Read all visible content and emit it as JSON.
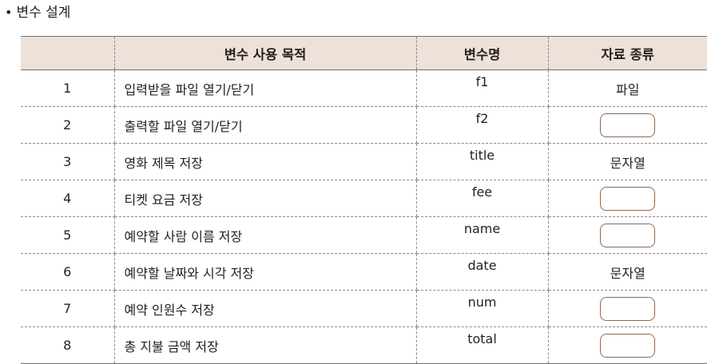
{
  "section": {
    "bullet": "•",
    "title": "변수 설계"
  },
  "table": {
    "headers": [
      "",
      "변수 사용 목적",
      "변수명",
      "자료 종류"
    ],
    "rows": [
      {
        "no": "1",
        "purpose": "입력받을 파일 열기/닫기",
        "name": "f1",
        "type": "파일"
      },
      {
        "no": "2",
        "purpose": "출력할 파일 열기/닫기",
        "name": "f2",
        "type": ""
      },
      {
        "no": "3",
        "purpose": "영화 제목 저장",
        "name": "title",
        "type": "문자열"
      },
      {
        "no": "4",
        "purpose": "티켓 요금 저장",
        "name": "fee",
        "type": ""
      },
      {
        "no": "5",
        "purpose": "예약할 사람 이름 저장",
        "name": "name",
        "type": ""
      },
      {
        "no": "6",
        "purpose": "예약할 날짜와 시각 저장",
        "name": "date",
        "type": "문자열"
      },
      {
        "no": "7",
        "purpose": "예약 인원수 저장",
        "name": "num",
        "type": ""
      },
      {
        "no": "8",
        "purpose": "총 지불 금액 저장",
        "name": "total",
        "type": ""
      }
    ]
  }
}
